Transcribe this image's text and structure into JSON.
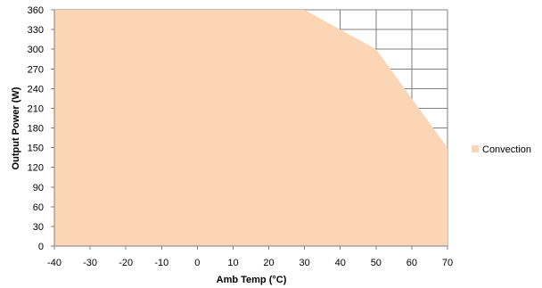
{
  "chart_data": {
    "type": "area",
    "xlabel": "Amb Temp (°C)",
    "ylabel": "Output Power (W)",
    "xlim": [
      -40,
      70
    ],
    "ylim": [
      0,
      360
    ],
    "x_ticks": [
      -40,
      -30,
      -20,
      -10,
      0,
      10,
      20,
      30,
      40,
      50,
      60,
      70
    ],
    "y_ticks": [
      0,
      30,
      60,
      90,
      120,
      150,
      180,
      210,
      240,
      270,
      300,
      330,
      360
    ],
    "grid": true,
    "legend_position": "right",
    "series": [
      {
        "name": "Convection",
        "color": "#fcd5b5",
        "x": [
          -40,
          30,
          40,
          50,
          60,
          70
        ],
        "y": [
          360,
          360,
          330,
          300,
          225,
          150
        ]
      }
    ]
  }
}
